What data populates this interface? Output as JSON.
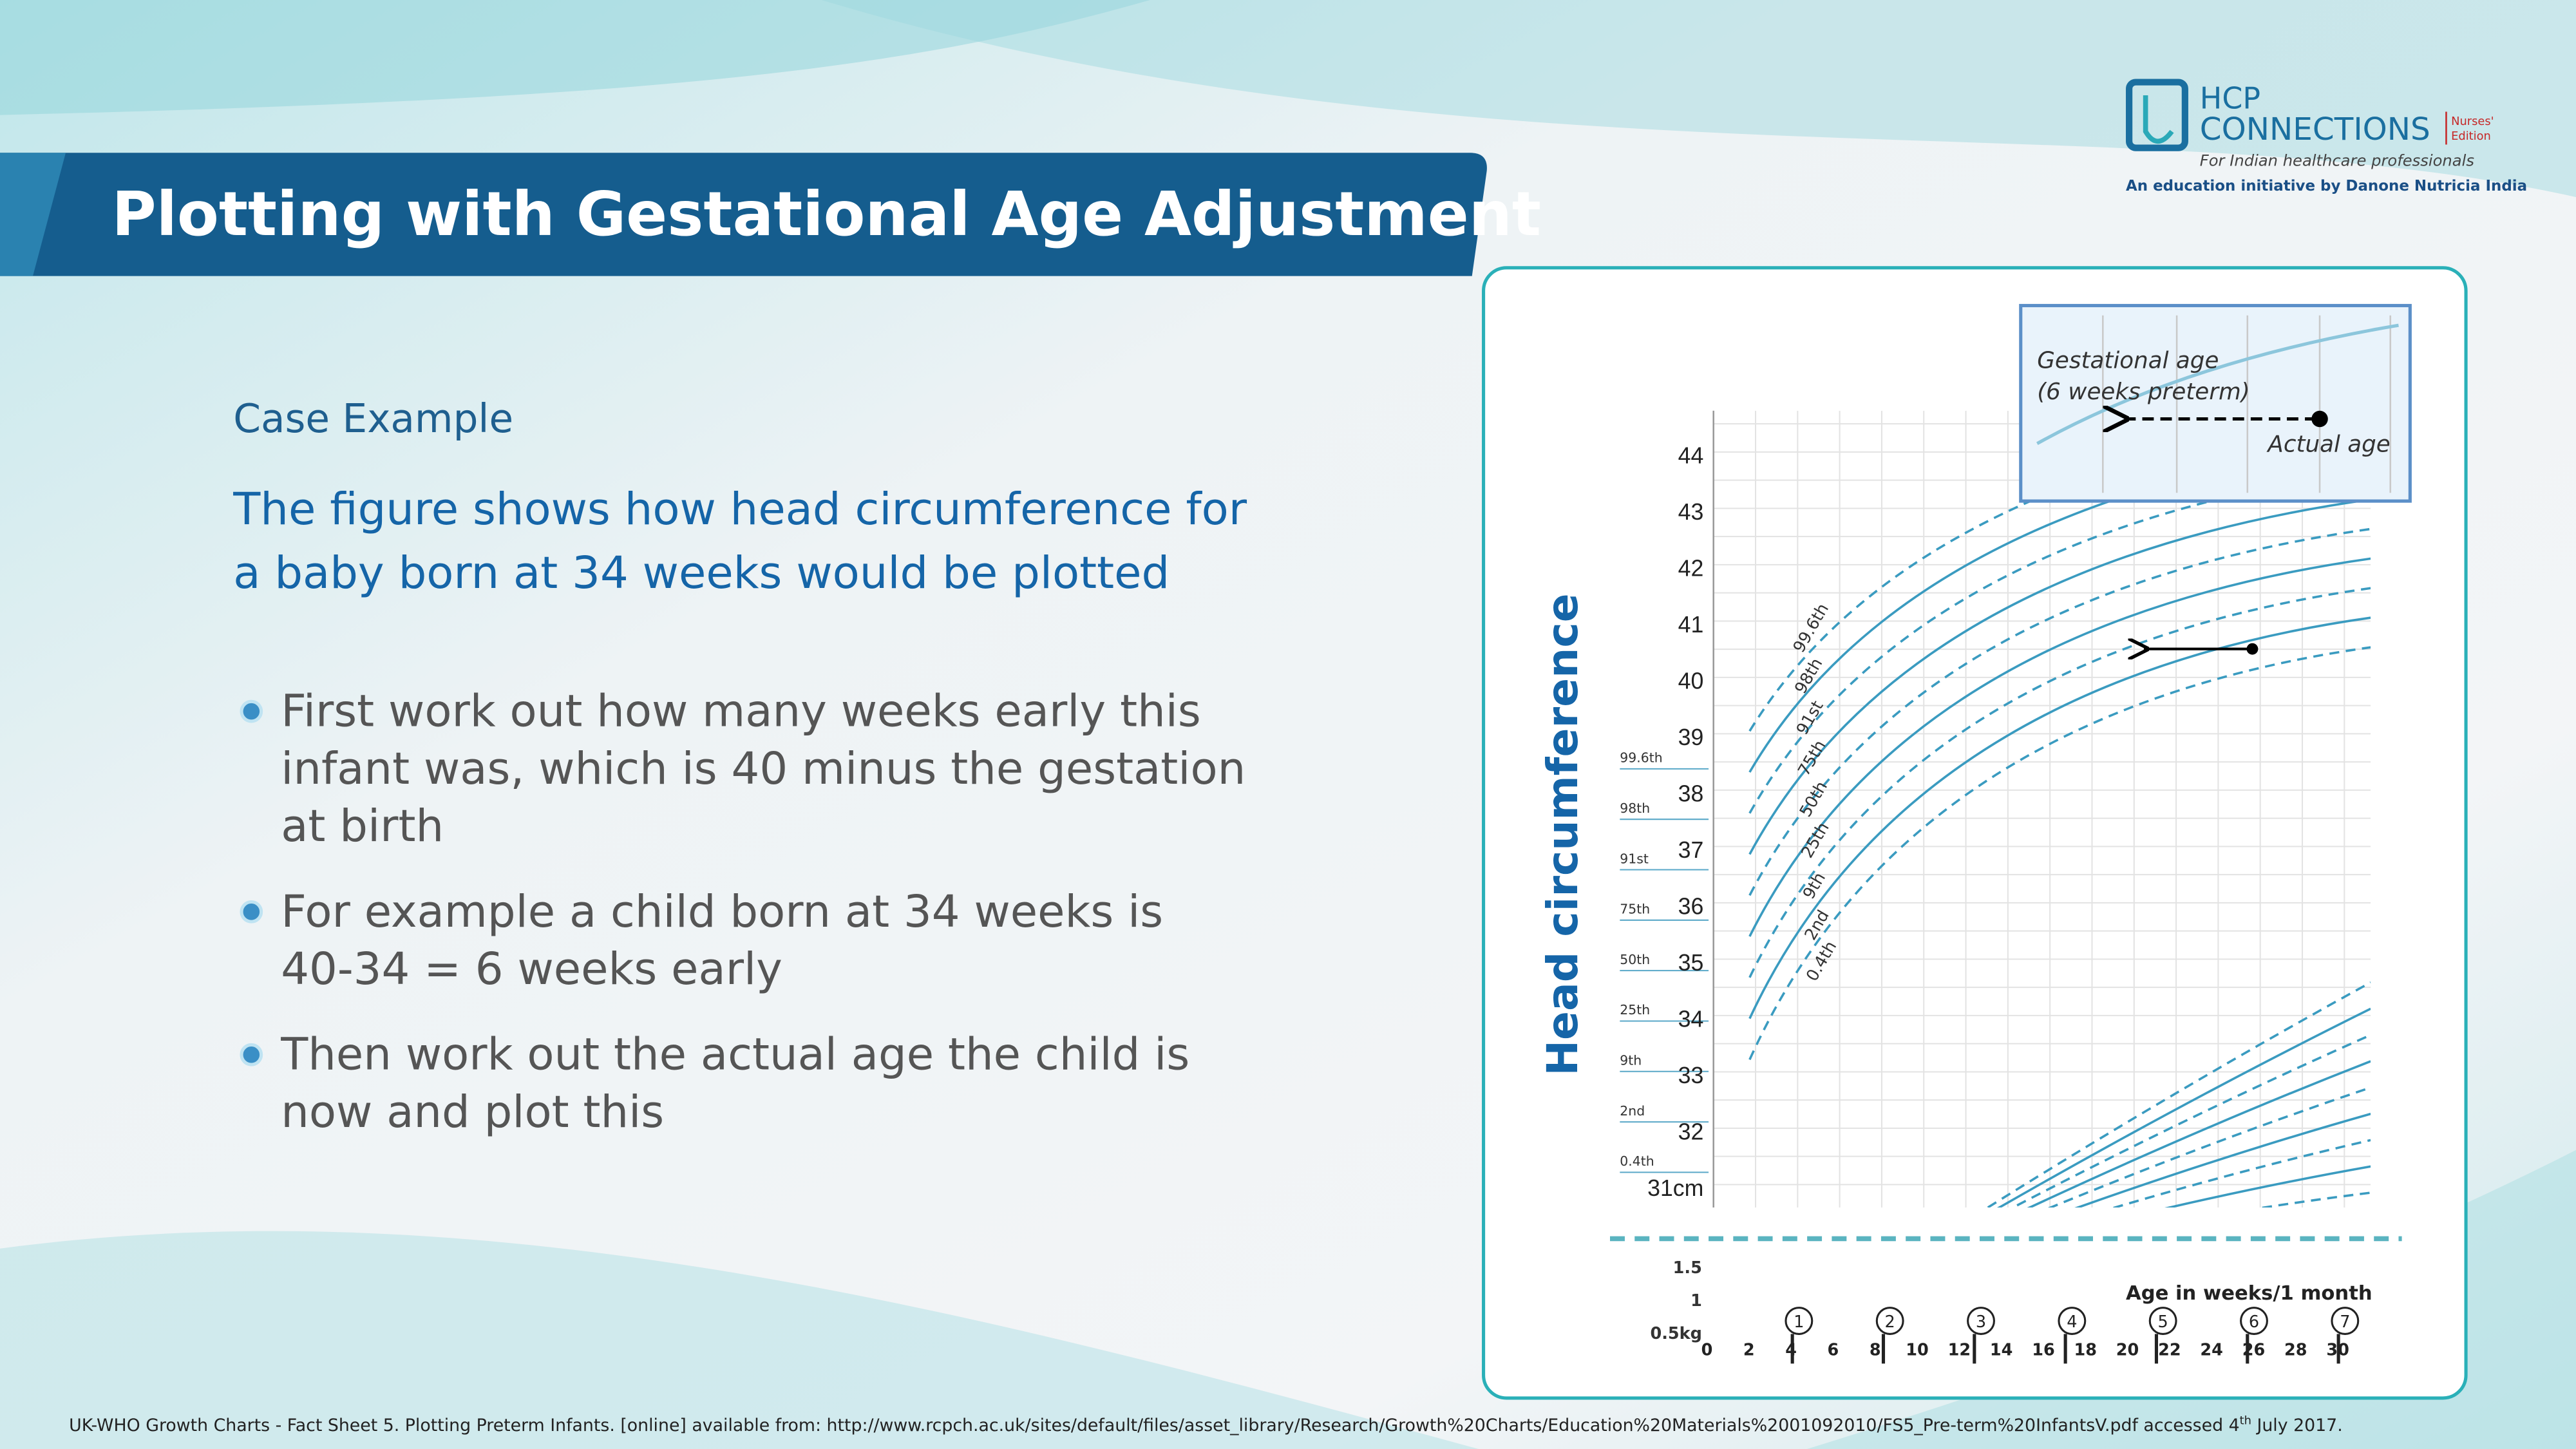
{
  "header": {
    "title": "Plotting with Gestational Age Adjustment"
  },
  "logo": {
    "name": "HCP",
    "name2": "CONNECTIONS",
    "edition": [
      "Nurses'",
      "Edition"
    ],
    "tagline": "For Indian healthcare professionals",
    "initiative": "An education initiative by Danone Nutricia India"
  },
  "content": {
    "label": "Case Example",
    "heading": [
      "The figure shows how head circumference for",
      "a baby born at 34 weeks would be plotted"
    ],
    "bullets": [
      [
        "First work out how many weeks early this",
        "infant was, which is 40 minus the gestation",
        "at birth"
      ],
      [
        " For example a child born at 34 weeks is",
        "40-34 = 6 weeks early"
      ],
      [
        "Then work out the actual age the child is",
        "now and plot this"
      ]
    ]
  },
  "figure": {
    "y_label": "Head circumference",
    "y_ticks": [
      "44",
      "43",
      "42",
      "41",
      "40",
      "39",
      "38",
      "37",
      "36",
      "35",
      "34",
      "33",
      "32",
      "31cm"
    ],
    "centiles": [
      "99.6th",
      "98th",
      "91st",
      "75th",
      "50th",
      "25th",
      "9th",
      "2nd",
      "0.4th"
    ],
    "inset": {
      "line1": "Gestational age",
      "line2": "(6 weeks preterm)",
      "line3": "Actual age"
    },
    "weight_ticks": [
      "1.5",
      "1",
      "0.5kg"
    ],
    "x_label": "Age in weeks/1 month",
    "x_ticks": [
      "0",
      "2",
      "4",
      "6",
      "8",
      "10",
      "12",
      "14",
      "16",
      "18",
      "20",
      "22",
      "24",
      "26",
      "28",
      "30"
    ],
    "months": [
      "1",
      "2",
      "3",
      "4",
      "5",
      "6",
      "7"
    ]
  },
  "footer": {
    "citation": "UK-WHO Growth Charts - Fact Sheet 5. Plotting Preterm Infants. [online] available  from: http://www.rcpch.ac.uk/sites/default/files/asset_library/Research/Growth%20Charts/Education%20Materials%2001092010/FS5_Pre-term%20InfantsV.pdf   accessed 4",
    "sup": "th",
    "end": " July 2017."
  }
}
